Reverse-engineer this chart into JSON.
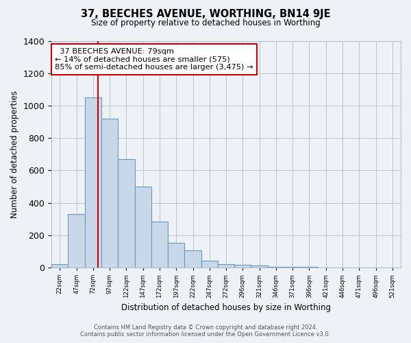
{
  "title": "37, BEECHES AVENUE, WORTHING, BN14 9JE",
  "subtitle": "Size of property relative to detached houses in Worthing",
  "xlabel": "Distribution of detached houses by size in Worthing",
  "ylabel": "Number of detached properties",
  "bar_labels": [
    "22sqm",
    "47sqm",
    "72sqm",
    "97sqm",
    "122sqm",
    "147sqm",
    "172sqm",
    "197sqm",
    "222sqm",
    "247sqm",
    "272sqm",
    "296sqm",
    "321sqm",
    "346sqm",
    "371sqm",
    "396sqm",
    "421sqm",
    "446sqm",
    "471sqm",
    "496sqm",
    "521sqm"
  ],
  "bar_values": [
    20,
    330,
    1050,
    920,
    670,
    500,
    285,
    150,
    105,
    40,
    20,
    15,
    10,
    5,
    4,
    2,
    1,
    1,
    0,
    0,
    0
  ],
  "bar_color": "#c8d8e8",
  "bar_edge_color": "#6699bb",
  "bar_width": 1.0,
  "ylim": [
    0,
    1400
  ],
  "yticks": [
    0,
    200,
    400,
    600,
    800,
    1000,
    1200,
    1400
  ],
  "vline_x": 79,
  "vline_color": "#cc0000",
  "annotation_title": "37 BEECHES AVENUE: 79sqm",
  "annotation_line1": "← 14% of detached houses are smaller (575)",
  "annotation_line2": "85% of semi-detached houses are larger (3,475) →",
  "annotation_box_color": "#ffffff",
  "annotation_box_edge": "#cc0000",
  "footer_line1": "Contains HM Land Registry data © Crown copyright and database right 2024.",
  "footer_line2": "Contains public sector information licensed under the Open Government Licence v3.0.",
  "bg_color": "#eef2f6",
  "plot_bg_color": "#eef2f6",
  "grid_color": "#b0bfcc"
}
